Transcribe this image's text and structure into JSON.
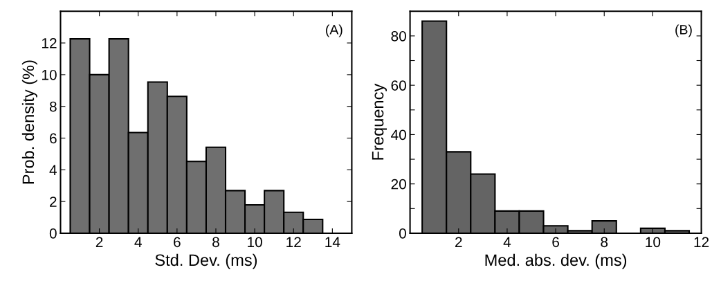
{
  "chart_data": [
    {
      "type": "histogram",
      "xlabel": "Std. Dev. (ms)",
      "ylabel": "Prob. density (%)",
      "annotations": [
        "(A)"
      ],
      "color": "#6f6f6f",
      "bins": [
        0.5,
        1.5,
        2.5,
        3.5,
        4.5,
        5.5,
        6.5,
        7.5,
        8.5,
        9.5,
        10.5,
        11.5,
        12.5,
        13.5
      ],
      "values": [
        12.26,
        10.0,
        12.26,
        6.35,
        9.54,
        8.63,
        4.53,
        5.42,
        2.69,
        1.79,
        2.69,
        1.32,
        0.87
      ],
      "xlim": [
        0,
        15
      ],
      "xticks": [
        2,
        4,
        6,
        8,
        10,
        12,
        14
      ],
      "ylim": [
        0,
        14
      ],
      "yticks": [
        0,
        2,
        4,
        6,
        8,
        10,
        12
      ],
      "grid": false
    },
    {
      "type": "histogram",
      "xlabel": "Med. abs. dev. (ms)",
      "ylabel": "Frequency",
      "annotations": [
        "(B)"
      ],
      "color": "#646464",
      "bins": [
        0.5,
        1.5,
        2.5,
        3.5,
        4.5,
        5.5,
        6.5,
        7.5,
        8.5,
        9.5,
        10.5,
        11.5
      ],
      "values": [
        86,
        33,
        24,
        9,
        9,
        3,
        1,
        5,
        0,
        2,
        1
      ],
      "xlim": [
        0,
        12
      ],
      "xticks": [
        2,
        4,
        6,
        8,
        10,
        12
      ],
      "ylim": [
        0,
        90
      ],
      "yticks": [
        0,
        {
          "value": 10,
          "label": null
        },
        20,
        {
          "value": 30,
          "label": null
        },
        40,
        {
          "value": 50,
          "label": null
        },
        60,
        {
          "value": 70,
          "label": null
        },
        80
      ],
      "grid": false
    }
  ]
}
